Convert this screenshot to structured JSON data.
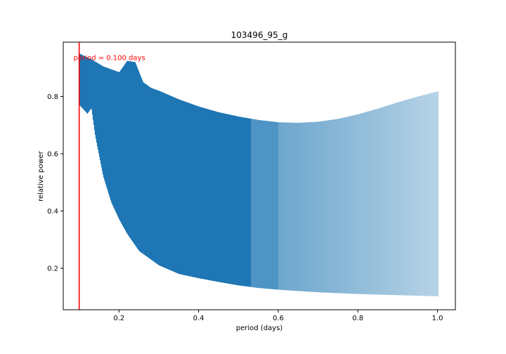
{
  "chart_data": {
    "type": "line",
    "title": "103496_95_g",
    "xlabel": "period (days)",
    "ylabel": "relative power",
    "xlim": [
      0.06,
      1.045
    ],
    "ylim": [
      0.055,
      0.99
    ],
    "xticks": [
      0.2,
      0.4,
      0.6,
      0.8,
      1.0
    ],
    "xtick_labels": [
      "0.2",
      "0.4",
      "0.6",
      "0.8",
      "1.0"
    ],
    "yticks": [
      0.2,
      0.4,
      0.6,
      0.8
    ],
    "ytick_labels": [
      "0.2",
      "0.4",
      "0.6",
      "0.8"
    ],
    "grid": false,
    "series": [
      {
        "color": "#1f77b4",
        "upper_envelope": {
          "x": [
            0.1,
            0.13,
            0.16,
            0.2,
            0.22,
            0.24,
            0.26,
            0.28,
            0.3,
            0.35,
            0.4,
            0.45,
            0.5,
            0.55,
            0.6,
            0.65,
            0.7,
            0.75,
            0.8,
            0.85,
            0.9,
            0.95,
            1.0
          ],
          "y": [
            0.95,
            0.93,
            0.905,
            0.885,
            0.925,
            0.92,
            0.85,
            0.83,
            0.82,
            0.79,
            0.765,
            0.745,
            0.73,
            0.718,
            0.71,
            0.708,
            0.712,
            0.722,
            0.738,
            0.758,
            0.78,
            0.8,
            0.818
          ]
        },
        "lower_envelope": {
          "x": [
            0.1,
            0.12,
            0.13,
            0.14,
            0.16,
            0.18,
            0.2,
            0.22,
            0.25,
            0.3,
            0.35,
            0.4,
            0.45,
            0.5,
            0.55,
            0.6,
            0.7,
            0.8,
            0.9,
            1.0
          ],
          "y": [
            0.77,
            0.74,
            0.76,
            0.66,
            0.52,
            0.43,
            0.37,
            0.32,
            0.26,
            0.21,
            0.18,
            0.165,
            0.152,
            0.14,
            0.131,
            0.125,
            0.116,
            0.11,
            0.106,
            0.102
          ]
        }
      }
    ],
    "annotation": {
      "text": "period = 0.100 days",
      "color": "#ff0000",
      "vline_x": 0.1
    }
  }
}
